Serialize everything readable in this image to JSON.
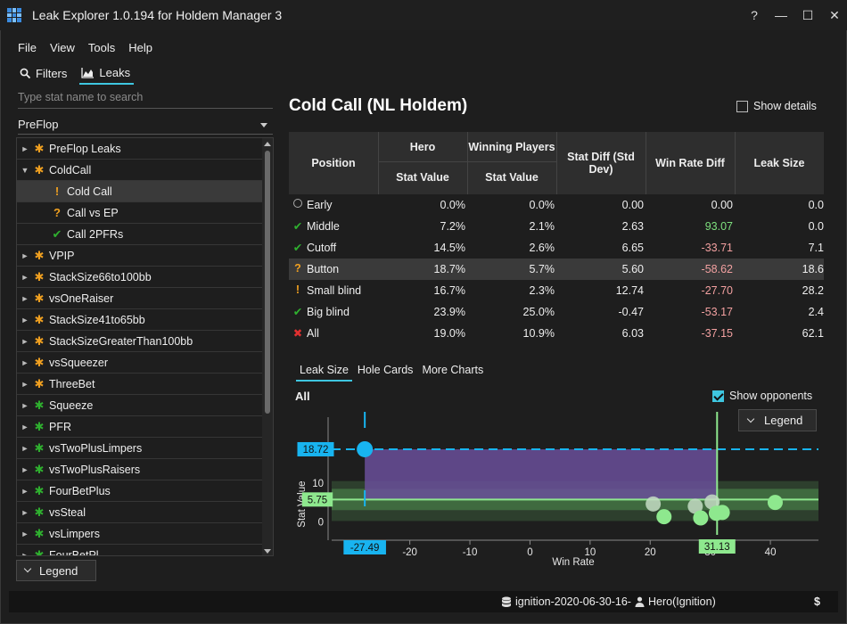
{
  "window": {
    "title": "Leak Explorer 1.0.194 for Holdem Manager 3",
    "controls": [
      "?",
      "—",
      "☐",
      "✕"
    ]
  },
  "menu": [
    "File",
    "View",
    "Tools",
    "Help"
  ],
  "sidetabs": {
    "filters": "Filters",
    "leaks": "Leaks"
  },
  "search": {
    "placeholder": "Type stat name to search"
  },
  "category": "PreFlop",
  "tree": [
    {
      "label": "PreFlop Leaks",
      "icon": "star-orange",
      "arrow": "►",
      "indent": 0
    },
    {
      "label": "ColdCall",
      "icon": "star-orange",
      "arrow": "▼",
      "indent": 0
    },
    {
      "label": "Cold Call",
      "icon": "exclaim-orange",
      "arrow": "",
      "indent": 1,
      "selected": true
    },
    {
      "label": "Call vs EP",
      "icon": "question-orange",
      "arrow": "",
      "indent": 1
    },
    {
      "label": "Call 2PFRs",
      "icon": "check-green",
      "arrow": "",
      "indent": 1
    },
    {
      "label": "VPIP",
      "icon": "star-orange",
      "arrow": "►",
      "indent": 0
    },
    {
      "label": "StackSize66to100bb",
      "icon": "star-orange",
      "arrow": "►",
      "indent": 0
    },
    {
      "label": "vsOneRaiser",
      "icon": "star-orange",
      "arrow": "►",
      "indent": 0
    },
    {
      "label": "StackSize41to65bb",
      "icon": "star-orange",
      "arrow": "►",
      "indent": 0
    },
    {
      "label": "StackSizeGreaterThan100bb",
      "icon": "star-orange",
      "arrow": "►",
      "indent": 0
    },
    {
      "label": "vsSqueezer",
      "icon": "star-orange",
      "arrow": "►",
      "indent": 0
    },
    {
      "label": "ThreeBet",
      "icon": "star-orange",
      "arrow": "►",
      "indent": 0
    },
    {
      "label": "Squeeze",
      "icon": "star-green",
      "arrow": "►",
      "indent": 0
    },
    {
      "label": "PFR",
      "icon": "star-green",
      "arrow": "►",
      "indent": 0
    },
    {
      "label": "vsTwoPlusLimpers",
      "icon": "star-green",
      "arrow": "►",
      "indent": 0
    },
    {
      "label": "vsTwoPlusRaisers",
      "icon": "star-green",
      "arrow": "►",
      "indent": 0
    },
    {
      "label": "FourBetPlus",
      "icon": "star-green",
      "arrow": "►",
      "indent": 0
    },
    {
      "label": "vsSteal",
      "icon": "star-green",
      "arrow": "►",
      "indent": 0
    },
    {
      "label": "vsLimpers",
      "icon": "star-green",
      "arrow": "►",
      "indent": 0
    },
    {
      "label": "FourBetPl",
      "icon": "star-green",
      "arrow": "►",
      "indent": 0
    }
  ],
  "legend_label": "Legend",
  "main": {
    "title": "Cold Call  (NL Holdem)",
    "show_details": "Show details",
    "table": {
      "headers": {
        "position": "Position",
        "hero": "Hero",
        "hero_sub": "Stat Value",
        "winners": "Winning Players",
        "winners_sub": "Stat Value",
        "stat_diff": "Stat Diff (Std Dev)",
        "wr_diff": "Win Rate Diff",
        "leak_size": "Leak Size"
      },
      "rows": [
        {
          "icon": "ring",
          "position": "Early",
          "hero": "0.0%",
          "winners": "0.0%",
          "stat_diff": "0.00",
          "wr_diff": "0.00",
          "wr_sign": "zero",
          "leak": "0.0"
        },
        {
          "icon": "check-green",
          "position": "Middle",
          "hero": "7.2%",
          "winners": "2.1%",
          "stat_diff": "2.63",
          "wr_diff": "93.07",
          "wr_sign": "pos",
          "leak": "0.0"
        },
        {
          "icon": "check-green",
          "position": "Cutoff",
          "hero": "14.5%",
          "winners": "2.6%",
          "stat_diff": "6.65",
          "wr_diff": "-33.71",
          "wr_sign": "neg",
          "leak": "7.1"
        },
        {
          "icon": "question-orange",
          "position": "Button",
          "hero": "18.7%",
          "winners": "5.7%",
          "stat_diff": "5.60",
          "wr_diff": "-58.62",
          "wr_sign": "neg",
          "leak": "18.6",
          "selected": true
        },
        {
          "icon": "exclaim-orange",
          "position": "Small blind",
          "hero": "16.7%",
          "winners": "2.3%",
          "stat_diff": "12.74",
          "wr_diff": "-27.70",
          "wr_sign": "neg",
          "leak": "28.2"
        },
        {
          "icon": "check-green",
          "position": "Big blind",
          "hero": "23.9%",
          "winners": "25.0%",
          "stat_diff": "-0.47",
          "wr_diff": "-53.17",
          "wr_sign": "neg",
          "leak": "2.4"
        },
        {
          "icon": "x-red",
          "position": "All",
          "hero": "19.0%",
          "winners": "10.9%",
          "stat_diff": "6.03",
          "wr_diff": "-37.15",
          "wr_sign": "neg",
          "leak": "62.1"
        }
      ]
    },
    "chart_tabs": [
      "Leak Size",
      "Hole Cards",
      "More Charts"
    ],
    "chart_title": "All",
    "show_opponents": "Show opponents"
  },
  "chart_data": {
    "type": "scatter",
    "xlabel": "Win Rate",
    "ylabel": "Stat Value",
    "xlim": [
      -33,
      48
    ],
    "ylim": [
      -2,
      27
    ],
    "x_ticks": [
      -20,
      -10,
      0,
      10,
      20,
      30,
      40
    ],
    "y_ticks": [
      0,
      10
    ],
    "hero": {
      "x": -27.49,
      "y": 18.72,
      "label_x": "-27.49",
      "label_y": "18.72",
      "color": "#18b4f0"
    },
    "winners": {
      "x": 31.13,
      "y": 5.75,
      "label_x": "31.13",
      "label_y": "5.75",
      "color": "#8ee88e"
    },
    "opponents_gray": [
      {
        "x": 20.5,
        "y": 4.6
      },
      {
        "x": 27.5,
        "y": 4.0
      },
      {
        "x": 30.3,
        "y": 5.1
      }
    ],
    "opponents_green": [
      {
        "x": 22.3,
        "y": 1.3
      },
      {
        "x": 28.4,
        "y": 1.0
      },
      {
        "x": 31.0,
        "y": 2.2
      },
      {
        "x": 32.0,
        "y": 2.4
      },
      {
        "x": 40.8,
        "y": 5.0
      }
    ],
    "leak_area_color": "#6a4f9a",
    "band_color": "#3f6a3f"
  },
  "statusbar": {
    "db": "ignition-2020-06-30-16-",
    "user": "Hero(Ignition)",
    "currency": "$"
  }
}
